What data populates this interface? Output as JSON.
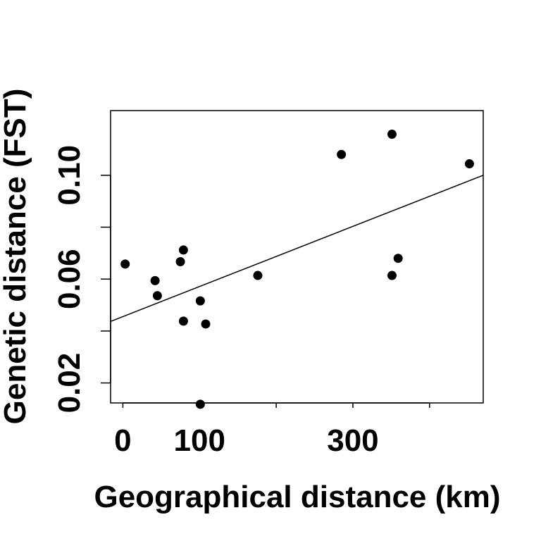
{
  "chart_data": {
    "type": "scatter",
    "title": "",
    "xlabel": "Geographical distance (km)",
    "ylabel": "Genetic distance (FST)",
    "xlim": [
      -16,
      470
    ],
    "ylim": [
      0.0123,
      0.1249
    ],
    "xticks": [
      0,
      100,
      200,
      300,
      400
    ],
    "xtick_labels": [
      "0",
      "100",
      "",
      "300",
      ""
    ],
    "yticks": [
      0.02,
      0.04,
      0.06,
      0.08,
      0.1
    ],
    "ytick_labels": [
      "0.02",
      "",
      "0.06",
      "",
      "0.10"
    ],
    "grid": false,
    "points": [
      {
        "x": 3,
        "y": 0.0658
      },
      {
        "x": 42,
        "y": 0.0594
      },
      {
        "x": 45,
        "y": 0.0536
      },
      {
        "x": 75,
        "y": 0.0667
      },
      {
        "x": 79,
        "y": 0.0712
      },
      {
        "x": 79,
        "y": 0.0438
      },
      {
        "x": 101,
        "y": 0.0516
      },
      {
        "x": 101,
        "y": 0.0118
      },
      {
        "x": 108,
        "y": 0.0427
      },
      {
        "x": 176,
        "y": 0.0614
      },
      {
        "x": 285,
        "y": 0.108
      },
      {
        "x": 351,
        "y": 0.1158
      },
      {
        "x": 351,
        "y": 0.0614
      },
      {
        "x": 359,
        "y": 0.068
      },
      {
        "x": 452,
        "y": 0.1044
      }
    ],
    "fit_line": {
      "x": [
        -16,
        470
      ],
      "y": [
        0.0437,
        0.1
      ]
    }
  }
}
